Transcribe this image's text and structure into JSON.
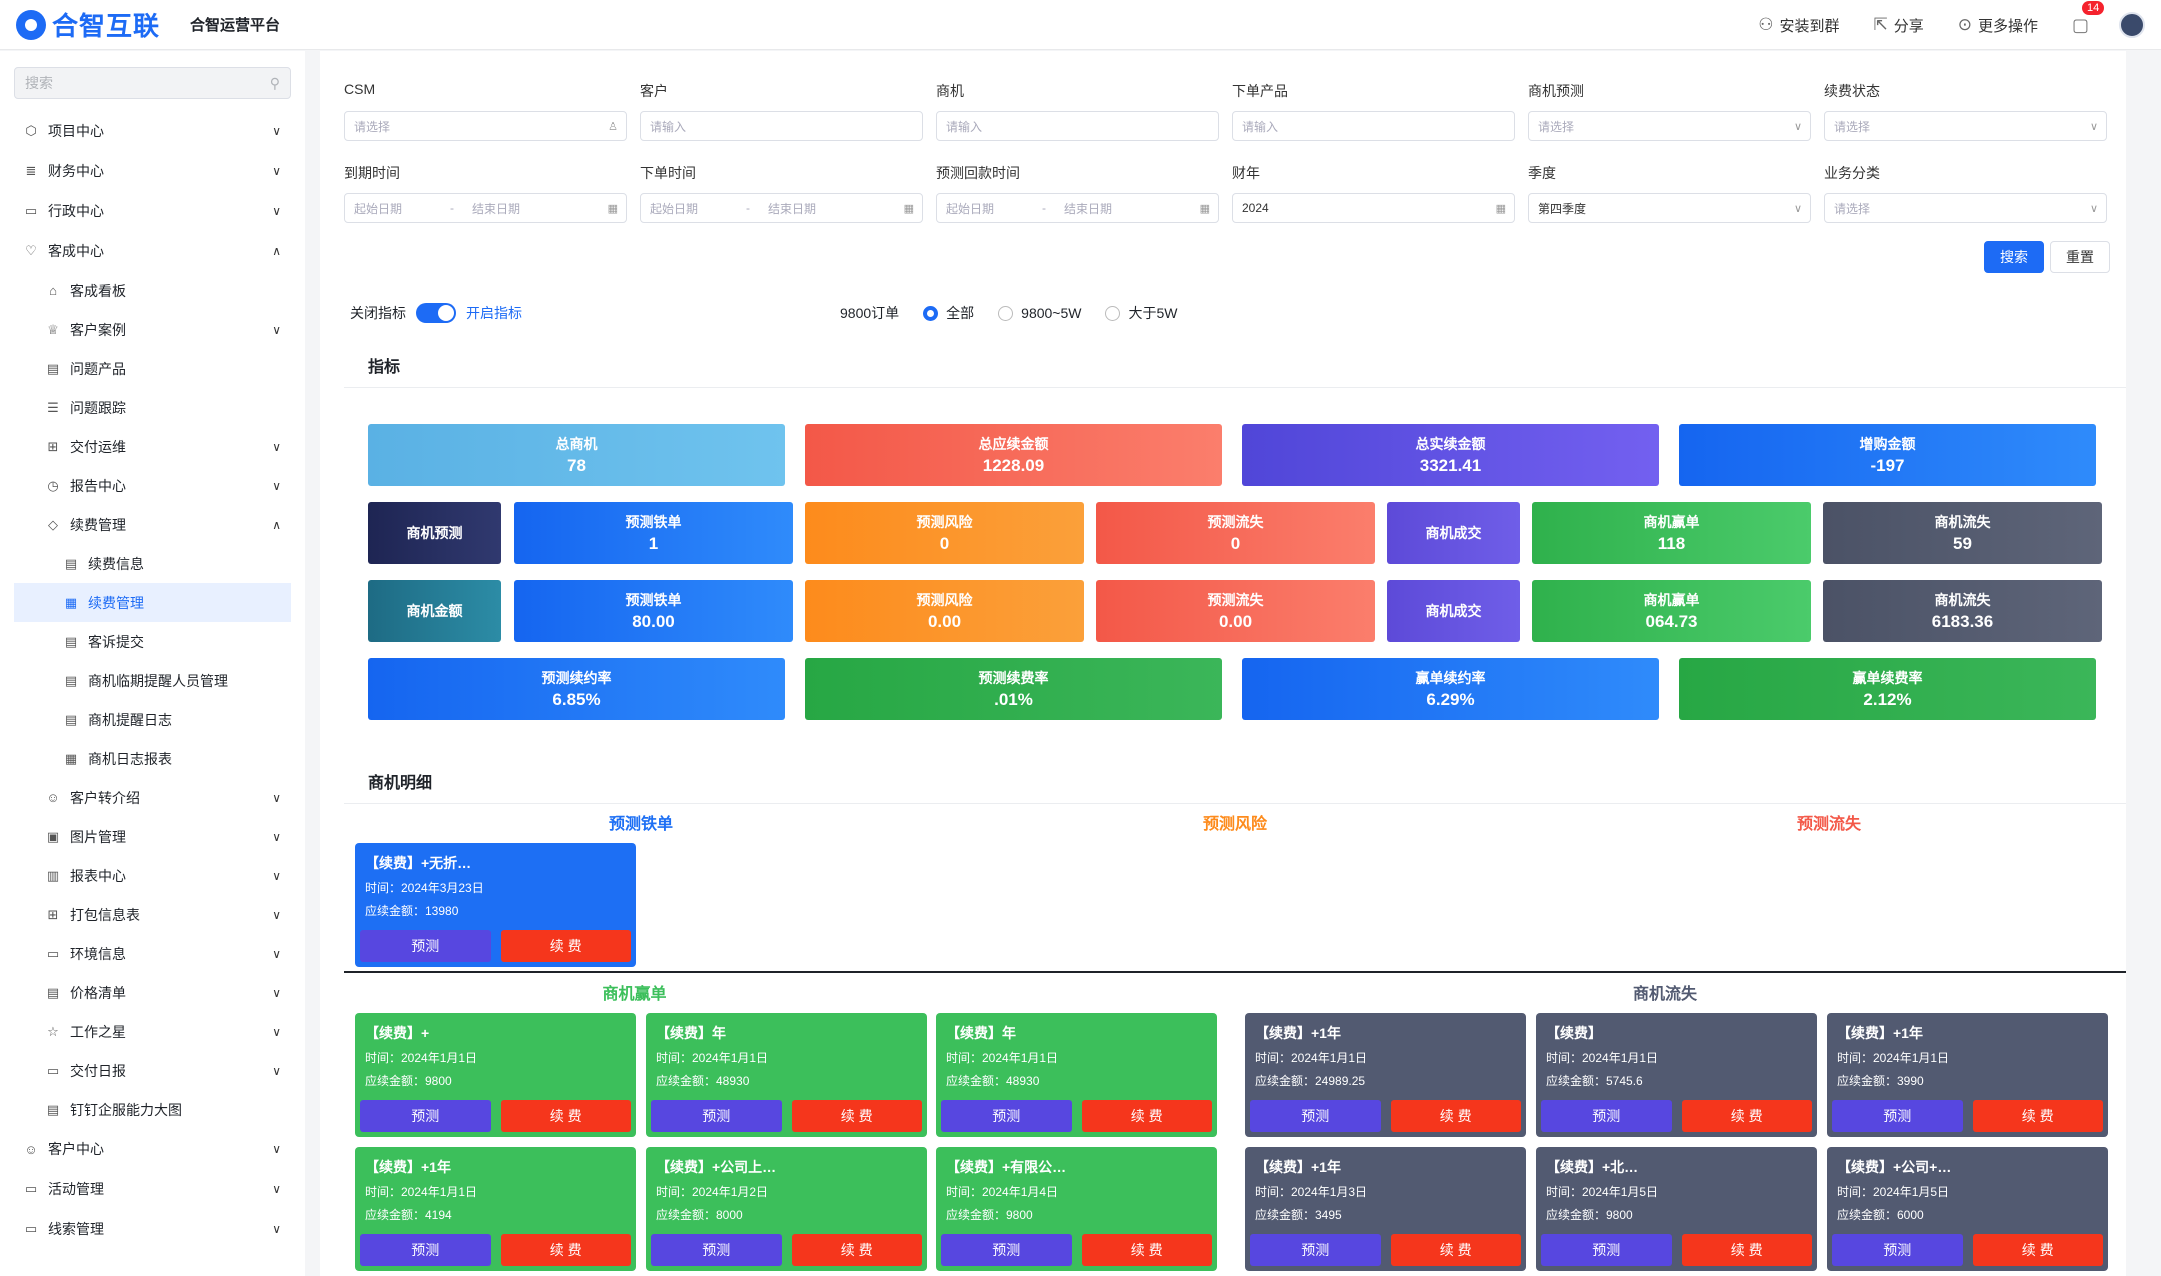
{
  "header": {
    "brand": "合智互联",
    "platform": "合智运营平台",
    "actions": [
      "安装到群",
      "分享",
      "更多操作"
    ],
    "notif_count": "14"
  },
  "sidebar": {
    "search_placeholder": "搜索",
    "items": [
      {
        "label": "项目中心",
        "level": 1,
        "icon": "cube-icon",
        "chev": "∨"
      },
      {
        "label": "财务中心",
        "level": 1,
        "icon": "database-icon",
        "chev": "∨"
      },
      {
        "label": "行政中心",
        "level": 1,
        "icon": "briefcase-icon",
        "chev": "∨"
      },
      {
        "label": "客成中心",
        "level": 1,
        "icon": "heart-icon",
        "chev": "∧"
      },
      {
        "label": "客成看板",
        "level": 2,
        "icon": "home-icon",
        "chev": ""
      },
      {
        "label": "客户案例",
        "level": 2,
        "icon": "crown-icon",
        "chev": "∨"
      },
      {
        "label": "问题产品",
        "level": 2,
        "icon": "doc-icon",
        "chev": ""
      },
      {
        "label": "问题跟踪",
        "level": 2,
        "icon": "list-icon",
        "chev": ""
      },
      {
        "label": "交付运维",
        "level": 2,
        "icon": "network-icon",
        "chev": "∨"
      },
      {
        "label": "报告中心",
        "level": 2,
        "icon": "gauge-icon",
        "chev": "∨"
      },
      {
        "label": "续费管理",
        "level": 2,
        "icon": "tag-icon",
        "chev": "∧"
      },
      {
        "label": "续费信息",
        "level": 3,
        "icon": "doc-icon",
        "chev": ""
      },
      {
        "label": "续费管理",
        "level": 3,
        "icon": "calendar-icon",
        "chev": "",
        "active": true
      },
      {
        "label": "客诉提交",
        "level": 3,
        "icon": "doc-icon",
        "chev": ""
      },
      {
        "label": "商机临期提醒人员管理",
        "level": 3,
        "icon": "doc-icon",
        "chev": ""
      },
      {
        "label": "商机提醒日志",
        "level": 3,
        "icon": "doc-icon",
        "chev": ""
      },
      {
        "label": "商机日志报表",
        "level": 3,
        "icon": "calendar-icon",
        "chev": ""
      },
      {
        "label": "客户转介绍",
        "level": 2,
        "icon": "users-icon",
        "chev": "∨"
      },
      {
        "label": "图片管理",
        "level": 2,
        "icon": "image-icon",
        "chev": "∨"
      },
      {
        "label": "报表中心",
        "level": 2,
        "icon": "chart-icon",
        "chev": "∨"
      },
      {
        "label": "打包信息表",
        "level": 2,
        "icon": "grid-icon",
        "chev": "∨"
      },
      {
        "label": "环境信息",
        "level": 2,
        "icon": "folder-icon",
        "chev": "∨"
      },
      {
        "label": "价格清单",
        "level": 2,
        "icon": "doc-icon",
        "chev": "∨"
      },
      {
        "label": "工作之星",
        "level": 2,
        "icon": "star-icon",
        "chev": "∨"
      },
      {
        "label": "交付日报",
        "level": 2,
        "icon": "folder-icon",
        "chev": "∨"
      },
      {
        "label": "钉钉企服能力大图",
        "level": 2,
        "icon": "doc-icon",
        "chev": ""
      },
      {
        "label": "客户中心",
        "level": 1,
        "icon": "user-icon",
        "chev": "∨"
      },
      {
        "label": "活动管理",
        "level": 1,
        "icon": "folder-icon",
        "chev": "∨"
      },
      {
        "label": "线索管理",
        "level": 1,
        "icon": "folder-icon",
        "chev": "∨"
      }
    ]
  },
  "filters": {
    "row1": [
      {
        "label": "CSM",
        "placeholder": "请选择",
        "suffix": "♙"
      },
      {
        "label": "客户",
        "placeholder": "请输入",
        "suffix": ""
      },
      {
        "label": "商机",
        "placeholder": "请输入",
        "suffix": ""
      },
      {
        "label": "下单产品",
        "placeholder": "请输入",
        "suffix": ""
      },
      {
        "label": "商机预测",
        "placeholder": "请选择",
        "suffix": "∨"
      },
      {
        "label": "续费状态",
        "placeholder": "请选择",
        "suffix": "∨"
      }
    ],
    "row2": [
      {
        "label": "到期时间",
        "start": "起始日期",
        "sep": "-",
        "end": "结束日期"
      },
      {
        "label": "下单时间",
        "start": "起始日期",
        "sep": "-",
        "end": "结束日期"
      },
      {
        "label": "预测回款时间",
        "start": "起始日期",
        "sep": "-",
        "end": "结束日期"
      },
      {
        "label": "财年",
        "value": "2024"
      },
      {
        "label": "季度",
        "value": "第四季度"
      },
      {
        "label": "业务分类",
        "placeholder": "请选择"
      }
    ],
    "search": "搜索",
    "reset": "重置"
  },
  "indicator_toggle": {
    "off_label": "关闭指标",
    "on_label": "开启指标"
  },
  "order_filter": {
    "label": "9800订单",
    "options": [
      "全部",
      "9800~5W",
      "大于5W"
    ],
    "selected": 0
  },
  "metrics_title": "指标",
  "kpi": {
    "row1": [
      {
        "label": "总商机",
        "value": "78"
      },
      {
        "label": "总应续金额",
        "value": "1228.09"
      },
      {
        "label": "总实续金额",
        "value": "3321.41"
      },
      {
        "label": "增购金额",
        "value": "-197"
      }
    ],
    "row2_head": "商机预测",
    "row2": [
      {
        "label": "预测铁单",
        "value": "1"
      },
      {
        "label": "预测风险",
        "value": "0"
      },
      {
        "label": "预测流失",
        "value": "0"
      },
      {
        "label": "商机成交",
        "value": ""
      },
      {
        "label": "商机赢单",
        "value": "118"
      },
      {
        "label": "商机流失",
        "value": "59"
      }
    ],
    "row3_head": "商机金额",
    "row3": [
      {
        "label": "预测铁单",
        "value": "80.00"
      },
      {
        "label": "预测风险",
        "value": "0.00"
      },
      {
        "label": "预测流失",
        "value": "0.00"
      },
      {
        "label": "商机成交",
        "value": ""
      },
      {
        "label": "商机赢单",
        "value": "064.73"
      },
      {
        "label": "商机流失",
        "value": "6183.36"
      }
    ],
    "row4": [
      {
        "label": "预测续约率",
        "value": "6.85%"
      },
      {
        "label": "预测续费率",
        "value": ".01%"
      },
      {
        "label": "赢单续约率",
        "value": "6.29%"
      },
      {
        "label": "赢单续费率",
        "value": "2.12%"
      }
    ]
  },
  "details_title": "商机明细",
  "forecast_cols": [
    "预测铁单",
    "预测风险",
    "预测流失"
  ],
  "forecast_cards": [
    {
      "title": "【续费】+无折…",
      "time": "时间：2024年3月23日",
      "amount": "应续金额：13980"
    }
  ],
  "won_title": "商机赢单",
  "lost_title": "商机流失",
  "won_cards": [
    {
      "title": "【续费】+",
      "time": "时间：2024年1月1日",
      "amount": "应续金额：9800"
    },
    {
      "title": "【续费】年",
      "time": "时间：2024年1月1日",
      "amount": "应续金额：48930"
    },
    {
      "title": "【续费】年",
      "time": "时间：2024年1月1日",
      "amount": "应续金额：48930"
    },
    {
      "title": "【续费】+1年",
      "time": "时间：2024年1月1日",
      "amount": "应续金额：4194"
    },
    {
      "title": "【续费】+公司上…",
      "time": "时间：2024年1月2日",
      "amount": "应续金额：8000"
    },
    {
      "title": "【续费】+有限公…",
      "time": "时间：2024年1月4日",
      "amount": "应续金额：9800"
    }
  ],
  "lost_cards": [
    {
      "title": "【续费】+1年",
      "time": "时间：2024年1月1日",
      "amount": "应续金额：24989.25"
    },
    {
      "title": "【续费】",
      "time": "时间：2024年1月1日",
      "amount": "应续金额：5745.6"
    },
    {
      "title": "【续费】+1年",
      "time": "时间：2024年1月1日",
      "amount": "应续金额：3990"
    },
    {
      "title": "【续费】+1年",
      "time": "时间：2024年1月3日",
      "amount": "应续金额：3495"
    },
    {
      "title": "【续费】+北…",
      "time": "时间：2024年1月5日",
      "amount": "应续金额：9800"
    },
    {
      "title": "【续费】+公司+…",
      "time": "时间：2024年1月5日",
      "amount": "应续金额：6000"
    }
  ],
  "card_buttons": {
    "predict": "预测",
    "renew": "续 费"
  }
}
